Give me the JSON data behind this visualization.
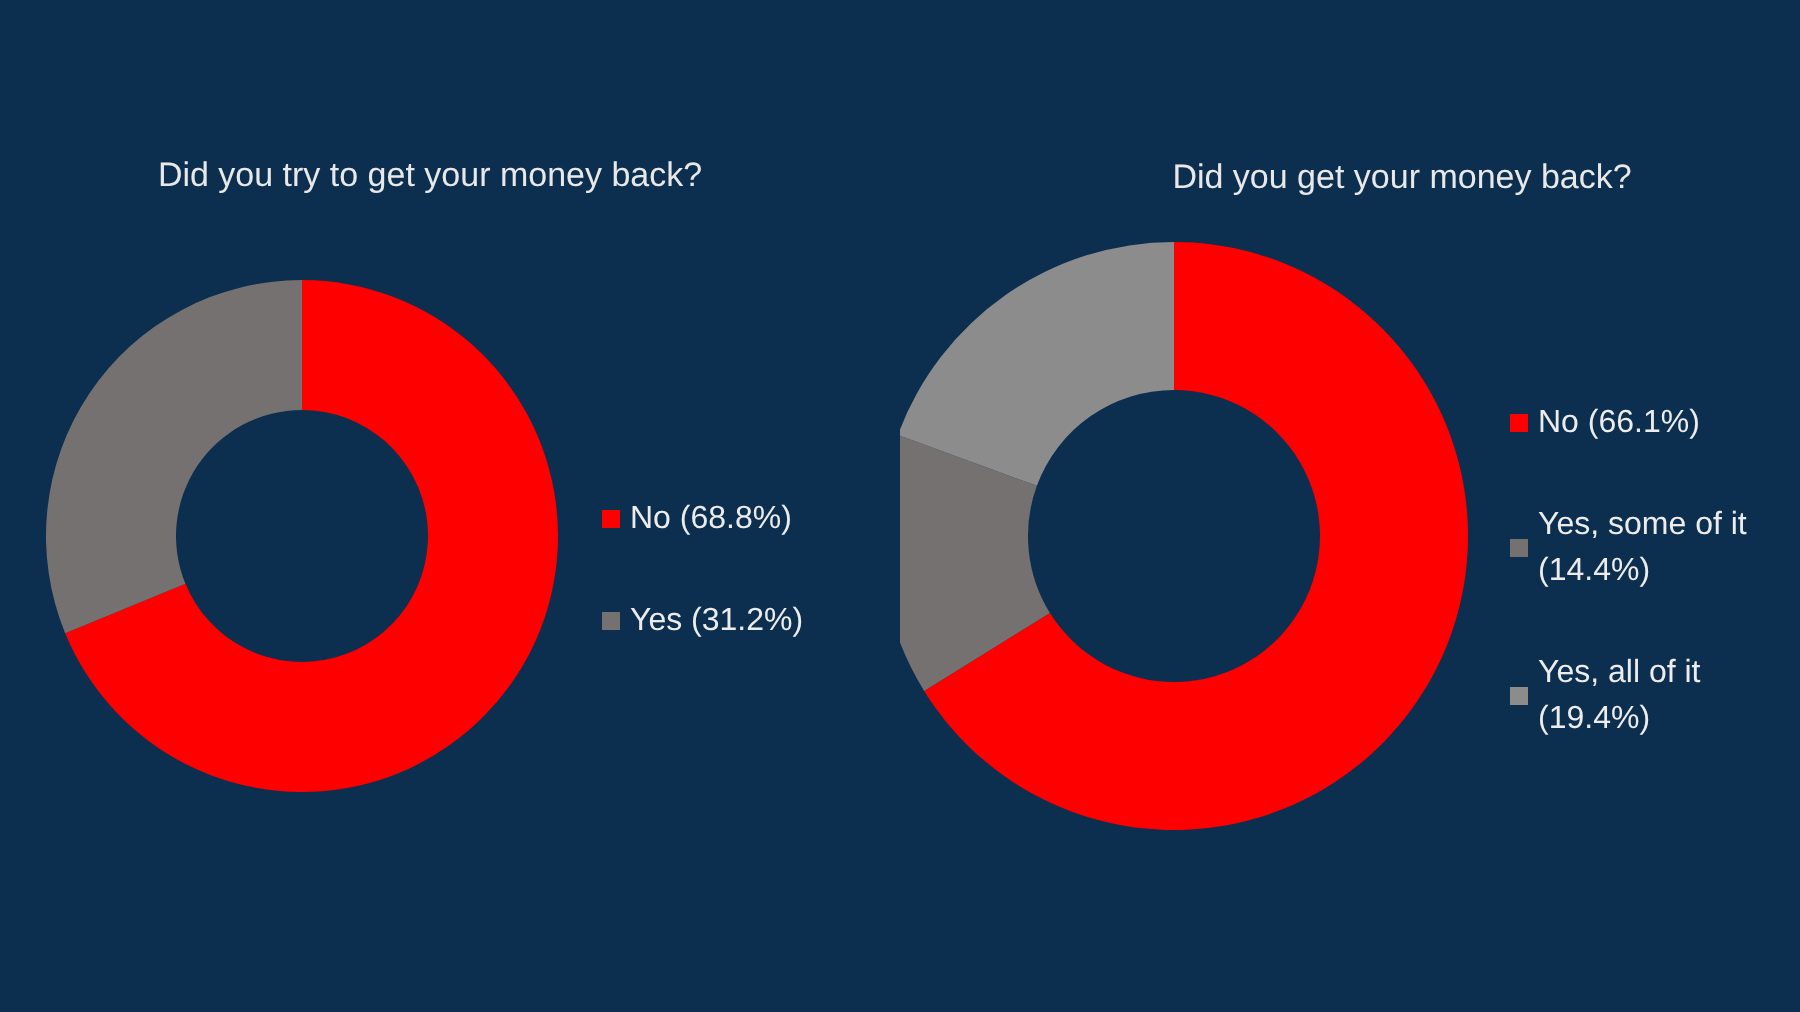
{
  "chart_data": [
    {
      "type": "donut",
      "title": "Did you try to get your money back?",
      "categories": [
        "No (68.8%)",
        "Yes (31.2%)"
      ],
      "values": [
        68.8,
        31.2
      ],
      "colors": [
        "#ff0000",
        "#767171"
      ],
      "legend": "right"
    },
    {
      "type": "donut",
      "title": "Did you get your money back?",
      "categories": [
        "No (66.1%)",
        "Yes, some of it (14.4%)",
        "Yes, all of it (19.4%)"
      ],
      "values": [
        66.1,
        14.4,
        19.4
      ],
      "colors": [
        "#ff0000",
        "#767171",
        "#8c8c8c"
      ],
      "legend": "right"
    }
  ]
}
